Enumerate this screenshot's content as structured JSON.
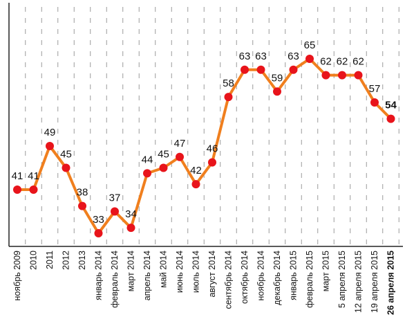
{
  "chart_data": {
    "type": "line",
    "categories": [
      "ноябрь 2009",
      "2010",
      "2011",
      "2012",
      "2013",
      "январь 2014",
      "февраль 2014",
      "март 2014",
      "апрель 2014",
      "май 2014",
      "июнь 2014",
      "июль 2014",
      "август 2014",
      "сентябрь 2014",
      "октябрь 2014",
      "ноябрь 2014",
      "декабрь 2014",
      "январь 2015",
      "февраль 2015",
      "март 2015",
      "5 апреля 2015",
      "12 апреля 2015",
      "19 апреля 2015",
      "26 апреля 2015"
    ],
    "values": [
      41,
      41,
      49,
      45,
      38,
      33,
      37,
      34,
      44,
      45,
      47,
      42,
      46,
      58,
      63,
      63,
      59,
      63,
      65,
      62,
      62,
      62,
      57,
      54
    ],
    "value_labels": [
      "41",
      "41",
      "49",
      "45",
      "38",
      "33",
      "37",
      "34",
      "44",
      "45",
      "47",
      "42",
      "46",
      "58",
      "63",
      "63",
      "59",
      "63",
      "65",
      "62",
      "62",
      "62",
      "57",
      "54"
    ],
    "ylim": [
      0,
      100
    ],
    "grid": "vertical dashed",
    "legend": "none",
    "colors": {
      "line": "#f07f1e",
      "marker": "#e8141b",
      "grid": "#9a9a9a",
      "axis": "#222222"
    }
  }
}
